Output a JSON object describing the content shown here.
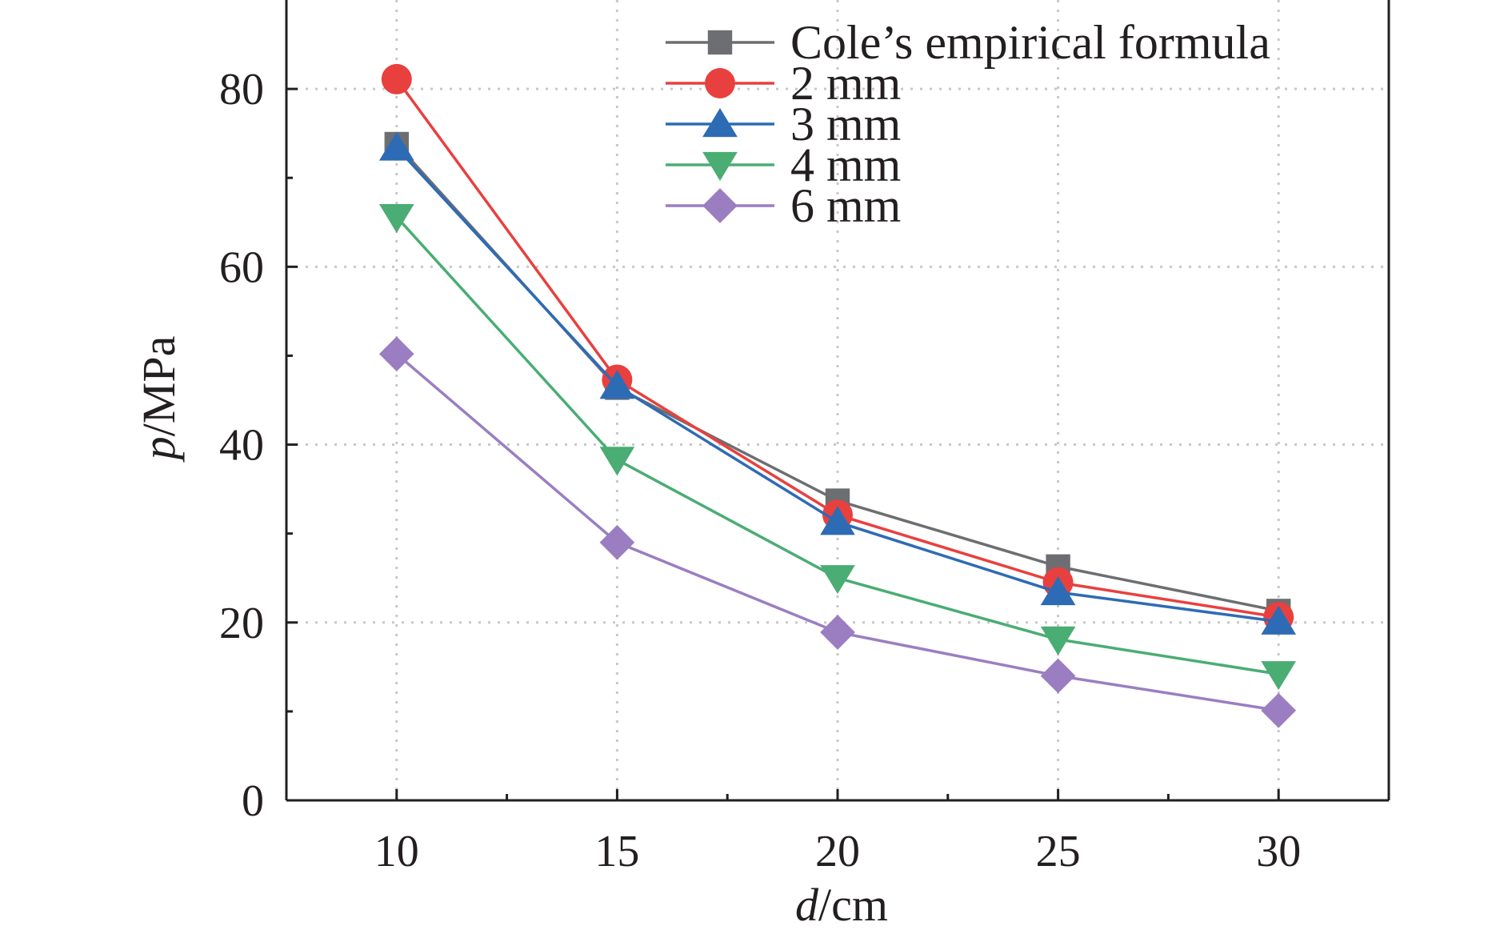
{
  "chart_data": {
    "type": "line",
    "x": [
      10,
      15,
      20,
      25,
      30
    ],
    "xlabel": {
      "italic": "d",
      "rest": "/cm"
    },
    "ylabel": {
      "italic": "p",
      "rest": "/MPa"
    },
    "xlim": [
      7.5,
      32.5
    ],
    "ylim": [
      0,
      90
    ],
    "xticks": [
      10,
      15,
      20,
      25,
      30
    ],
    "yticks": [
      0,
      20,
      40,
      60,
      80
    ],
    "grid": true,
    "legend_position": "top-right",
    "series": [
      {
        "name": "Cole’s empirical formula",
        "color": "#6d6e71",
        "marker": "square",
        "values": [
          73.8,
          46.4,
          33.7,
          26.3,
          21.3
        ]
      },
      {
        "name": "2 mm",
        "color": "#e8403f",
        "marker": "circle",
        "values": [
          81.1,
          47.3,
          32.1,
          24.5,
          20.6
        ]
      },
      {
        "name": "3 mm",
        "color": "#2e6bb5",
        "marker": "triangle-up",
        "values": [
          73.4,
          46.6,
          31.3,
          23.4,
          20.1
        ]
      },
      {
        "name": "4 mm",
        "color": "#4aad73",
        "marker": "triangle-down",
        "values": [
          65.6,
          38.3,
          25.0,
          18.1,
          14.2
        ]
      },
      {
        "name": "6 mm",
        "color": "#9b7ec1",
        "marker": "diamond",
        "values": [
          50.2,
          29.0,
          18.9,
          14.0,
          10.1
        ]
      }
    ]
  }
}
